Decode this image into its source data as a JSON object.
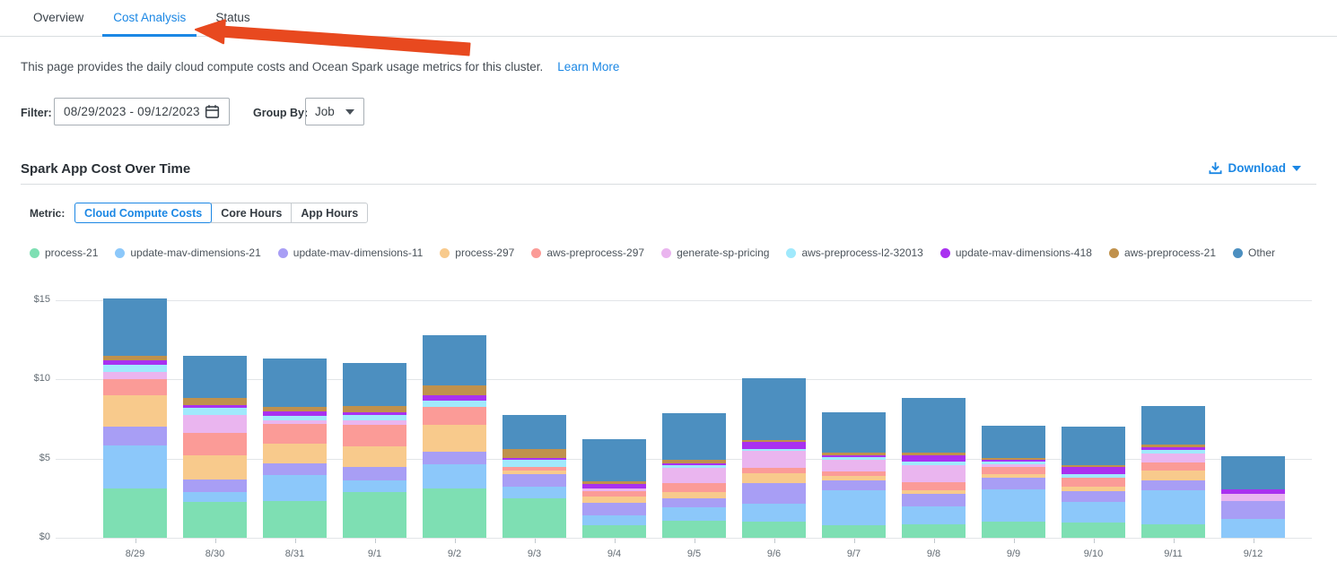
{
  "tabs": [
    {
      "label": "Overview",
      "active": false
    },
    {
      "label": "Cost Analysis",
      "active": true
    },
    {
      "label": "Status",
      "active": false
    }
  ],
  "description": {
    "text": "This page provides the daily cloud compute costs and Ocean Spark usage metrics for this cluster.",
    "link_label": "Learn More"
  },
  "filter": {
    "label": "Filter:",
    "date_range": "08/29/2023 - 09/12/2023",
    "group_by_label": "Group By:",
    "group_by_value": "Job"
  },
  "section": {
    "title": "Spark App Cost Over Time",
    "download_label": "Download"
  },
  "metric": {
    "label": "Metric:",
    "options": [
      {
        "label": "Cloud Compute Costs",
        "active": true
      },
      {
        "label": "Core Hours",
        "active": false
      },
      {
        "label": "App Hours",
        "active": false
      }
    ]
  },
  "colors": {
    "accent_blue": "#1B87E4",
    "annotation_arrow": "#E8491F",
    "gridline": "#E2E5E8",
    "other_series": "#4C8FC0"
  },
  "chart_data": {
    "type": "bar",
    "stacked": true,
    "title": "Spark App Cost Over Time",
    "xlabel": "",
    "ylabel": "Cloud Compute Costs ($)",
    "ylim": [
      0,
      15
    ],
    "y_tick_values": [
      0,
      5,
      10,
      15
    ],
    "y_tick_labels": [
      "$0",
      "$5",
      "$10",
      "$15"
    ],
    "grid": true,
    "legend_position": "top",
    "categories": [
      "8/29",
      "8/30",
      "8/31",
      "9/1",
      "9/2",
      "9/3",
      "9/4",
      "9/5",
      "9/6",
      "9/7",
      "9/8",
      "9/9",
      "9/10",
      "9/11",
      "9/12"
    ],
    "series": [
      {
        "name": "process-21",
        "color": "#7EDFB3",
        "values": [
          3.1,
          2.25,
          2.3,
          2.9,
          3.1,
          2.5,
          0.8,
          1.05,
          1.0,
          0.8,
          0.85,
          1.0,
          0.95,
          0.85,
          0
        ]
      },
      {
        "name": "update-mav-dimensions-21",
        "color": "#8CC8FA",
        "values": [
          2.75,
          0.65,
          1.65,
          0.7,
          1.55,
          0.75,
          0.6,
          0.85,
          1.15,
          2.2,
          1.15,
          2.05,
          1.3,
          2.15,
          1.2
        ]
      },
      {
        "name": "update-mav-dimensions-11",
        "color": "#A89EF5",
        "values": [
          1.15,
          0.8,
          0.75,
          0.85,
          0.8,
          0.75,
          0.8,
          0.6,
          1.3,
          0.6,
          0.75,
          0.75,
          0.7,
          0.65,
          1.1
        ]
      },
      {
        "name": "process-297",
        "color": "#F8CA8C",
        "values": [
          2.0,
          1.5,
          1.25,
          1.35,
          1.7,
          0.25,
          0.4,
          0.4,
          0.6,
          0.3,
          0.25,
          0.2,
          0.3,
          0.6,
          0
        ]
      },
      {
        "name": "aws-preprocess-297",
        "color": "#FB9B97",
        "values": [
          1.0,
          1.45,
          1.25,
          1.35,
          1.1,
          0.2,
          0.35,
          0.55,
          0.35,
          0.3,
          0.5,
          0.5,
          0.55,
          0.5,
          0
        ]
      },
      {
        "name": "generate-sp-pricing",
        "color": "#EAB5EF",
        "values": [
          0.45,
          1.1,
          0.2,
          0.25,
          0,
          0,
          0.15,
          0.95,
          1.1,
          0.7,
          1.1,
          0.15,
          0,
          0.6,
          0.45
        ]
      },
      {
        "name": "aws-preprocess-l2-32013",
        "color": "#A0E9FC",
        "values": [
          0.5,
          0.45,
          0.3,
          0.35,
          0.4,
          0.45,
          0,
          0.2,
          0.1,
          0.2,
          0.2,
          0.15,
          0.2,
          0.2,
          0
        ]
      },
      {
        "name": "update-mav-dimensions-418",
        "color": "#A931F0",
        "values": [
          0.25,
          0.2,
          0.3,
          0.15,
          0.35,
          0.15,
          0.3,
          0.1,
          0.45,
          0.1,
          0.4,
          0.1,
          0.45,
          0.15,
          0.3
        ]
      },
      {
        "name": "aws-preprocess-21",
        "color": "#C0914C",
        "values": [
          0.3,
          0.45,
          0.25,
          0.45,
          0.65,
          0.55,
          0.15,
          0.2,
          0.15,
          0.2,
          0.2,
          0.15,
          0.15,
          0.2,
          0
        ]
      },
      {
        "name": "Other",
        "color": "#4C8FC0",
        "values": [
          3.6,
          2.65,
          3.1,
          2.7,
          3.15,
          2.15,
          2.7,
          2.95,
          3.9,
          2.55,
          3.45,
          2.05,
          2.4,
          2.4,
          2.1
        ]
      }
    ]
  }
}
